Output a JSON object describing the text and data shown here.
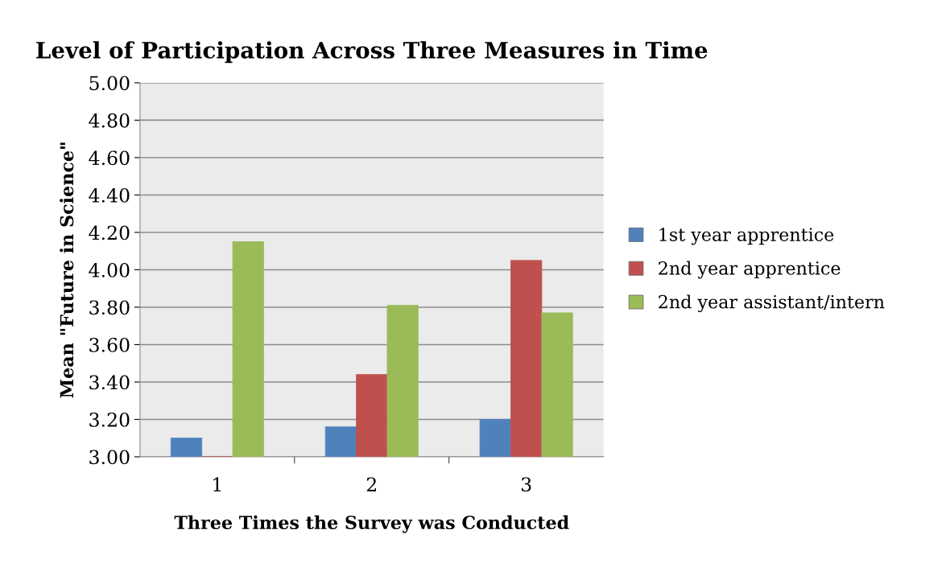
{
  "chart_data": {
    "type": "bar",
    "title": "Level of Participation Across Three Measures in Time",
    "xlabel": "Three Times the Survey was Conducted",
    "ylabel": "Mean \"Future in Science\"",
    "categories": [
      "1",
      "2",
      "3"
    ],
    "series": [
      {
        "name": "1st year apprentice",
        "color": "#4f81bd",
        "values": [
          3.1,
          3.16,
          3.2
        ]
      },
      {
        "name": "2nd year apprentice",
        "color": "#c0504d",
        "values": [
          3.0,
          3.44,
          4.05
        ]
      },
      {
        "name": "2nd year assistant/intern",
        "color": "#9bbb59",
        "values": [
          4.15,
          3.81,
          3.77
        ]
      }
    ],
    "ylim": [
      3.0,
      5.0
    ],
    "yticks": [
      {
        "value": 3.0,
        "label": "3.00"
      },
      {
        "value": 3.2,
        "label": "3.20"
      },
      {
        "value": 3.4,
        "label": "3.40"
      },
      {
        "value": 3.6,
        "label": "3.60"
      },
      {
        "value": 3.8,
        "label": "3.80"
      },
      {
        "value": 4.0,
        "label": "4.00"
      },
      {
        "value": 4.2,
        "label": "4.20"
      },
      {
        "value": 4.4,
        "label": "4.40"
      },
      {
        "value": 4.6,
        "label": "4.60"
      },
      {
        "value": 4.8,
        "label": "4.80"
      },
      {
        "value": 5.0,
        "label": "5.00"
      }
    ],
    "grid": "y",
    "legend": "right"
  }
}
